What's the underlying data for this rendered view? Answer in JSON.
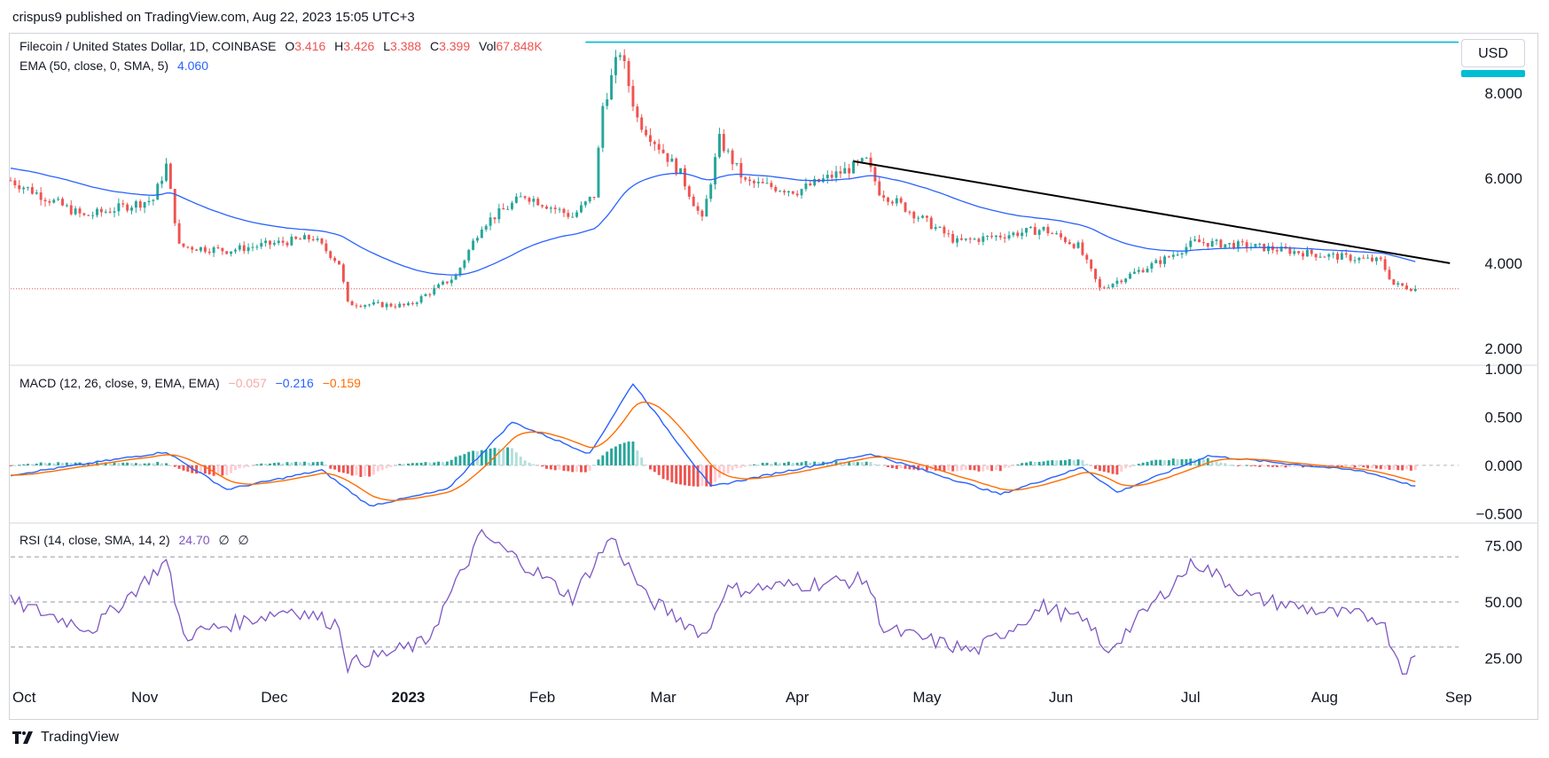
{
  "header": {
    "publisher": "crispus9 published on TradingView.com, Aug 22, 2023 15:05 UTC+3"
  },
  "symbol": {
    "name": "Filecoin / United States Dollar, 1D, COINBASE",
    "o_label": "O",
    "o": "3.416",
    "h_label": "H",
    "h": "3.426",
    "l_label": "L",
    "l": "3.388",
    "c_label": "C",
    "c": "3.399",
    "vol_label": "Vol",
    "vol": "67.848K"
  },
  "ema": {
    "label": "EMA (50, close, 0, SMA, 5)",
    "value": "4.060"
  },
  "macd": {
    "label": "MACD (12, 26, close, 9, EMA, EMA)",
    "hist": "−0.057",
    "macd": "−0.216",
    "signal": "−0.159"
  },
  "rsi": {
    "label": "RSI (14, close, SMA, 14, 2)",
    "value": "24.70",
    "extra1": "∅",
    "extra2": "∅"
  },
  "currency_button": "USD",
  "footer": {
    "brand": "TradingView"
  },
  "colors": {
    "up": "#26a69a",
    "down": "#ef5350",
    "ema": "#2962ff",
    "macd": "#2962ff",
    "signal": "#ff6d00",
    "rsi": "#7e57c2",
    "resistance": "#00bcd4",
    "trend": "#000000"
  },
  "chart_data": [
    {
      "type": "candlestick",
      "title": "Filecoin / United States Dollar, 1D, COINBASE",
      "x_ticks": [
        "Oct",
        "Nov",
        "Dec",
        "2023",
        "Feb",
        "Mar",
        "Apr",
        "May",
        "Jun",
        "Jul",
        "Aug",
        "Sep"
      ],
      "y_ticks": [
        "2.000",
        "4.000",
        "6.000",
        "8.000"
      ],
      "ylim": [
        1.6,
        9.4
      ],
      "price_anchors": [
        {
          "date": "2022-10-01",
          "close": 5.95
        },
        {
          "date": "2022-10-18",
          "close": 5.1
        },
        {
          "date": "2022-11-03",
          "close": 5.5
        },
        {
          "date": "2022-11-06",
          "close": 6.3
        },
        {
          "date": "2022-11-09",
          "close": 4.4
        },
        {
          "date": "2022-11-20",
          "close": 4.3
        },
        {
          "date": "2022-12-10",
          "close": 4.6
        },
        {
          "date": "2022-12-16",
          "close": 4.0
        },
        {
          "date": "2022-12-18",
          "close": 3.05
        },
        {
          "date": "2023-01-01",
          "close": 3.0
        },
        {
          "date": "2023-01-12",
          "close": 3.7
        },
        {
          "date": "2023-01-18",
          "close": 4.9
        },
        {
          "date": "2023-01-28",
          "close": 5.6
        },
        {
          "date": "2023-02-08",
          "close": 5.1
        },
        {
          "date": "2023-02-13",
          "close": 5.6
        },
        {
          "date": "2023-02-15",
          "close": 7.7
        },
        {
          "date": "2023-02-19",
          "close": 9.0
        },
        {
          "date": "2023-02-23",
          "close": 7.4
        },
        {
          "date": "2023-03-05",
          "close": 6.1
        },
        {
          "date": "2023-03-10",
          "close": 5.0
        },
        {
          "date": "2023-03-14",
          "close": 6.9
        },
        {
          "date": "2023-03-20",
          "close": 5.9
        },
        {
          "date": "2023-04-01",
          "close": 5.7
        },
        {
          "date": "2023-04-17",
          "close": 6.4
        },
        {
          "date": "2023-04-20",
          "close": 5.7
        },
        {
          "date": "2023-05-08",
          "close": 4.5
        },
        {
          "date": "2023-05-28",
          "close": 4.8
        },
        {
          "date": "2023-06-05",
          "close": 4.4
        },
        {
          "date": "2023-06-10",
          "close": 3.4
        },
        {
          "date": "2023-06-25",
          "close": 4.1
        },
        {
          "date": "2023-07-02",
          "close": 4.5
        },
        {
          "date": "2023-07-15",
          "close": 4.4
        },
        {
          "date": "2023-07-31",
          "close": 4.2
        },
        {
          "date": "2023-08-14",
          "close": 4.05
        },
        {
          "date": "2023-08-17",
          "close": 3.5
        },
        {
          "date": "2023-08-22",
          "close": 3.4
        }
      ],
      "series": [
        {
          "name": "EMA (50, close, 0, SMA, 5)",
          "last": 4.06
        }
      ],
      "annotations": [
        {
          "type": "horizontal_line",
          "y": 9.2,
          "from": "2023-02-11"
        },
        {
          "type": "trendline",
          "from": {
            "date": "2023-04-14",
            "y": 6.4
          },
          "to": {
            "date": "2023-08-30",
            "y": 4.0
          }
        },
        {
          "type": "price_line",
          "y": 3.399
        }
      ]
    },
    {
      "type": "line",
      "title": "MACD (12, 26, close, 9, EMA, EMA)",
      "y_ticks": [
        "−0.500",
        "0.000",
        "0.500",
        "1.000"
      ],
      "ylim": [
        -0.58,
        1.02
      ],
      "series": [
        {
          "name": "MACD",
          "last": -0.216,
          "anchors": [
            {
              "date": "2022-10-01",
              "v": -0.1
            },
            {
              "date": "2022-11-06",
              "v": 0.14
            },
            {
              "date": "2022-11-20",
              "v": -0.25
            },
            {
              "date": "2022-12-12",
              "v": -0.05
            },
            {
              "date": "2022-12-23",
              "v": -0.42
            },
            {
              "date": "2023-01-10",
              "v": -0.25
            },
            {
              "date": "2023-01-25",
              "v": 0.45
            },
            {
              "date": "2023-02-12",
              "v": 0.12
            },
            {
              "date": "2023-02-22",
              "v": 0.85
            },
            {
              "date": "2023-03-12",
              "v": -0.22
            },
            {
              "date": "2023-04-18",
              "v": 0.12
            },
            {
              "date": "2023-05-18",
              "v": -0.3
            },
            {
              "date": "2023-06-06",
              "v": -0.02
            },
            {
              "date": "2023-06-14",
              "v": -0.28
            },
            {
              "date": "2023-07-05",
              "v": 0.1
            },
            {
              "date": "2023-08-10",
              "v": -0.06
            },
            {
              "date": "2023-08-22",
              "v": -0.216
            }
          ]
        },
        {
          "name": "Signal",
          "last": -0.159
        },
        {
          "name": "Histogram",
          "last": -0.057
        }
      ]
    },
    {
      "type": "line",
      "title": "RSI (14, close, SMA, 14, 2)",
      "y_ticks": [
        "25.00",
        "50.00",
        "75.00"
      ],
      "ylim": [
        15,
        85
      ],
      "bands": [
        70,
        50,
        30
      ],
      "series": [
        {
          "name": "RSI",
          "last": 24.7,
          "anchors": [
            {
              "date": "2022-10-01",
              "v": 50
            },
            {
              "date": "2022-10-20",
              "v": 38
            },
            {
              "date": "2022-11-06",
              "v": 68
            },
            {
              "date": "2022-11-10",
              "v": 35
            },
            {
              "date": "2022-12-05",
              "v": 47
            },
            {
              "date": "2022-12-16",
              "v": 40
            },
            {
              "date": "2022-12-18",
              "v": 22
            },
            {
              "date": "2023-01-05",
              "v": 32
            },
            {
              "date": "2023-01-18",
              "v": 80
            },
            {
              "date": "2023-02-08",
              "v": 52
            },
            {
              "date": "2023-02-17",
              "v": 79
            },
            {
              "date": "2023-02-25",
              "v": 52
            },
            {
              "date": "2023-03-11",
              "v": 35
            },
            {
              "date": "2023-03-15",
              "v": 55
            },
            {
              "date": "2023-04-17",
              "v": 60
            },
            {
              "date": "2023-04-21",
              "v": 38
            },
            {
              "date": "2023-05-12",
              "v": 28
            },
            {
              "date": "2023-05-28",
              "v": 48
            },
            {
              "date": "2023-06-08",
              "v": 40
            },
            {
              "date": "2023-06-11",
              "v": 27
            },
            {
              "date": "2023-07-02",
              "v": 68
            },
            {
              "date": "2023-07-15",
              "v": 52
            },
            {
              "date": "2023-08-02",
              "v": 45
            },
            {
              "date": "2023-08-14",
              "v": 43
            },
            {
              "date": "2023-08-19",
              "v": 20
            },
            {
              "date": "2023-08-22",
              "v": 24.7
            }
          ]
        }
      ]
    }
  ]
}
